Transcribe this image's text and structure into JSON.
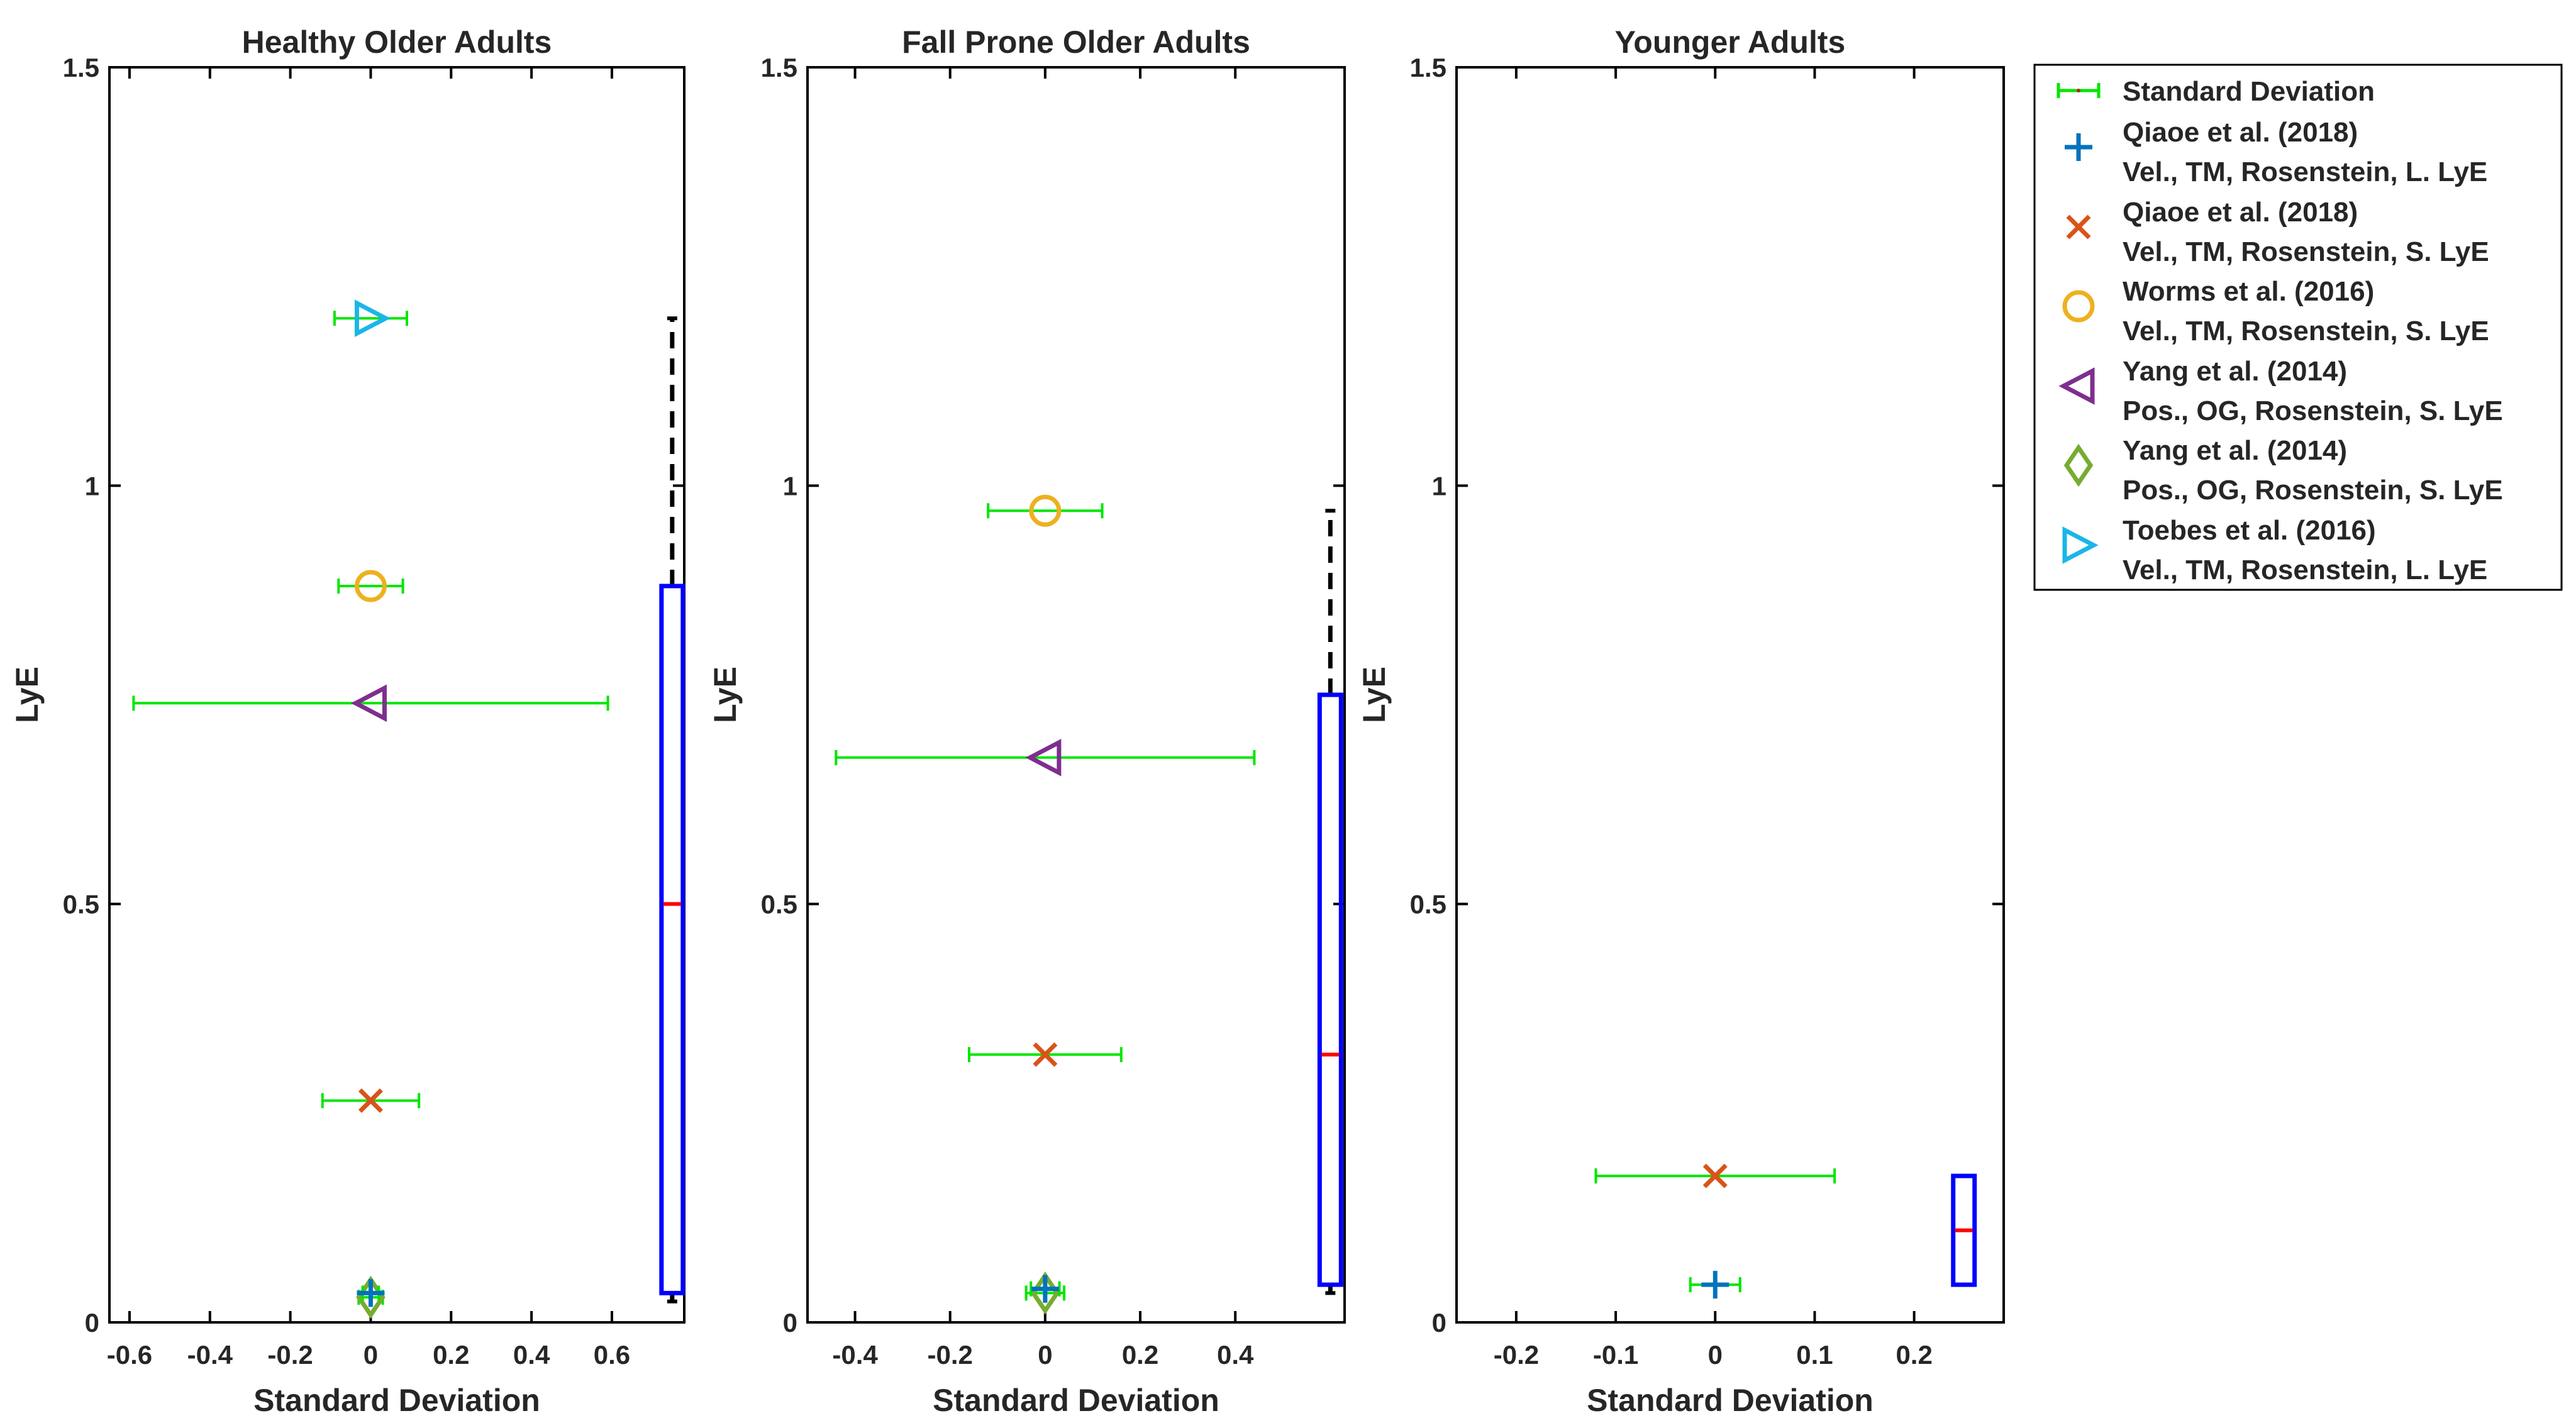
{
  "colors": {
    "sd_bar": "#00e600",
    "box": "#0000ff",
    "median": "#ff0000",
    "whisker": "#000000",
    "qiaoe_long": "#0072bd",
    "qiaoe_short": "#d95319",
    "worms": "#edb120",
    "yang_a": "#7e2f8e",
    "yang_b": "#77ac30",
    "toebes": "#1ab6e8",
    "axes": "#000000"
  },
  "legend": {
    "entries": [
      {
        "line1": "Standard Deviation",
        "line2": "",
        "marker": "errorbar",
        "color_key": "sd_bar"
      },
      {
        "line1": "Qiaoe et al. (2018)",
        "line2": "Vel., TM, Rosenstein, L. LyE",
        "marker": "plus",
        "color_key": "qiaoe_long"
      },
      {
        "line1": "Qiaoe et al. (2018)",
        "line2": "Vel., TM, Rosenstein, S. LyE",
        "marker": "x",
        "color_key": "qiaoe_short"
      },
      {
        "line1": "Worms et al. (2016)",
        "line2": "Vel., TM, Rosenstein, S. LyE",
        "marker": "circle",
        "color_key": "worms"
      },
      {
        "line1": "Yang et al. (2014)",
        "line2": "Pos., OG, Rosenstein, S. LyE",
        "marker": "triangle-left",
        "color_key": "yang_a"
      },
      {
        "line1": "Yang et al. (2014)",
        "line2": "Pos., OG, Rosenstein, S. LyE",
        "marker": "diamond",
        "color_key": "yang_b"
      },
      {
        "line1": "Toebes et al. (2016)",
        "line2": "Vel., TM, Rosenstein, L. LyE",
        "marker": "triangle-right",
        "color_key": "toebes"
      }
    ]
  },
  "chart_data": [
    {
      "type": "scatter",
      "title": "Healthy Older Adults",
      "xlabel": "Standard Deviation",
      "ylabel": "LyE",
      "xlim": [
        -0.65,
        0.78
      ],
      "ylim": [
        0,
        1.5
      ],
      "xticks": [
        -0.6,
        -0.4,
        -0.2,
        0,
        0.2,
        0.4,
        0.6
      ],
      "xtick_labels": [
        "-0.6",
        "-0.4",
        "-0.2",
        "0",
        "0.2",
        "0.4",
        "0.6"
      ],
      "yticks": [
        0,
        0.5,
        1,
        1.5
      ],
      "ytick_labels": [
        "0",
        "0.5",
        "1",
        "1.5"
      ],
      "points": [
        {
          "study": "Toebes et al. (2016)",
          "marker": "triangle-right",
          "color_key": "toebes",
          "x": 0,
          "y": 1.2,
          "sd": 0.09
        },
        {
          "study": "Worms et al. (2016)",
          "marker": "circle",
          "color_key": "worms",
          "x": 0,
          "y": 0.88,
          "sd": 0.08
        },
        {
          "study": "Yang et al. (2014)",
          "marker": "triangle-left",
          "color_key": "yang_a",
          "x": 0,
          "y": 0.74,
          "sd": 0.59
        },
        {
          "study": "Qiaoe et al. (2018)",
          "marker": "x",
          "color_key": "qiaoe_short",
          "x": 0,
          "y": 0.265,
          "sd": 0.12
        },
        {
          "study": "Yang et al. (2014)",
          "marker": "diamond",
          "color_key": "yang_b",
          "x": 0,
          "y": 0.03,
          "sd": 0.03
        },
        {
          "study": "Qiaoe et al. (2018)",
          "marker": "plus",
          "color_key": "qiaoe_long",
          "x": 0,
          "y": 0.035,
          "sd": 0.02
        }
      ],
      "box": {
        "x": 0.75,
        "min": 0.025,
        "q1": 0.035,
        "median": 0.5,
        "q3": 0.88,
        "max": 1.2
      }
    },
    {
      "type": "scatter",
      "title": "Fall Prone Older Adults",
      "xlabel": "Standard Deviation",
      "ylabel": "LyE",
      "xlim": [
        -0.5,
        0.63
      ],
      "ylim": [
        0,
        1.5
      ],
      "xticks": [
        -0.4,
        -0.2,
        0,
        0.2,
        0.4
      ],
      "xtick_labels": [
        "-0.4",
        "-0.2",
        "0",
        "0.2",
        "0.4"
      ],
      "yticks": [
        0,
        0.5,
        1,
        1.5
      ],
      "ytick_labels": [
        "0",
        "0.5",
        "1",
        "1.5"
      ],
      "points": [
        {
          "study": "Worms et al. (2016)",
          "marker": "circle",
          "color_key": "worms",
          "x": 0,
          "y": 0.97,
          "sd": 0.12
        },
        {
          "study": "Yang et al. (2014)",
          "marker": "triangle-left",
          "color_key": "yang_a",
          "x": 0,
          "y": 0.675,
          "sd": 0.44
        },
        {
          "study": "Qiaoe et al. (2018)",
          "marker": "x",
          "color_key": "qiaoe_short",
          "x": 0,
          "y": 0.32,
          "sd": 0.16
        },
        {
          "study": "Yang et al. (2014)",
          "marker": "diamond",
          "color_key": "yang_b",
          "x": 0,
          "y": 0.035,
          "sd": 0.04
        },
        {
          "study": "Qiaoe et al. (2018)",
          "marker": "plus",
          "color_key": "qiaoe_long",
          "x": 0,
          "y": 0.04,
          "sd": 0.03
        }
      ],
      "box": {
        "x": 0.6,
        "min": 0.035,
        "q1": 0.045,
        "median": 0.32,
        "q3": 0.75,
        "max": 0.97
      }
    },
    {
      "type": "scatter",
      "title": "Younger Adults",
      "xlabel": "Standard Deviation",
      "ylabel": "LyE",
      "xlim": [
        -0.26,
        0.29
      ],
      "ylim": [
        0,
        1.5
      ],
      "xticks": [
        -0.2,
        -0.1,
        0,
        0.1,
        0.2
      ],
      "xtick_labels": [
        "-0.2",
        "-0.1",
        "0",
        "0.1",
        "0.2"
      ],
      "yticks": [
        0,
        0.5,
        1,
        1.5
      ],
      "ytick_labels": [
        "0",
        "0.5",
        "1",
        "1.5"
      ],
      "points": [
        {
          "study": "Qiaoe et al. (2018)",
          "marker": "x",
          "color_key": "qiaoe_short",
          "x": 0,
          "y": 0.175,
          "sd": 0.12
        },
        {
          "study": "Qiaoe et al. (2018)",
          "marker": "plus",
          "color_key": "qiaoe_long",
          "x": 0,
          "y": 0.045,
          "sd": 0.025
        }
      ],
      "box": {
        "x": 0.25,
        "min": 0.045,
        "q1": 0.045,
        "median": 0.11,
        "q3": 0.175,
        "max": 0.175
      }
    }
  ]
}
